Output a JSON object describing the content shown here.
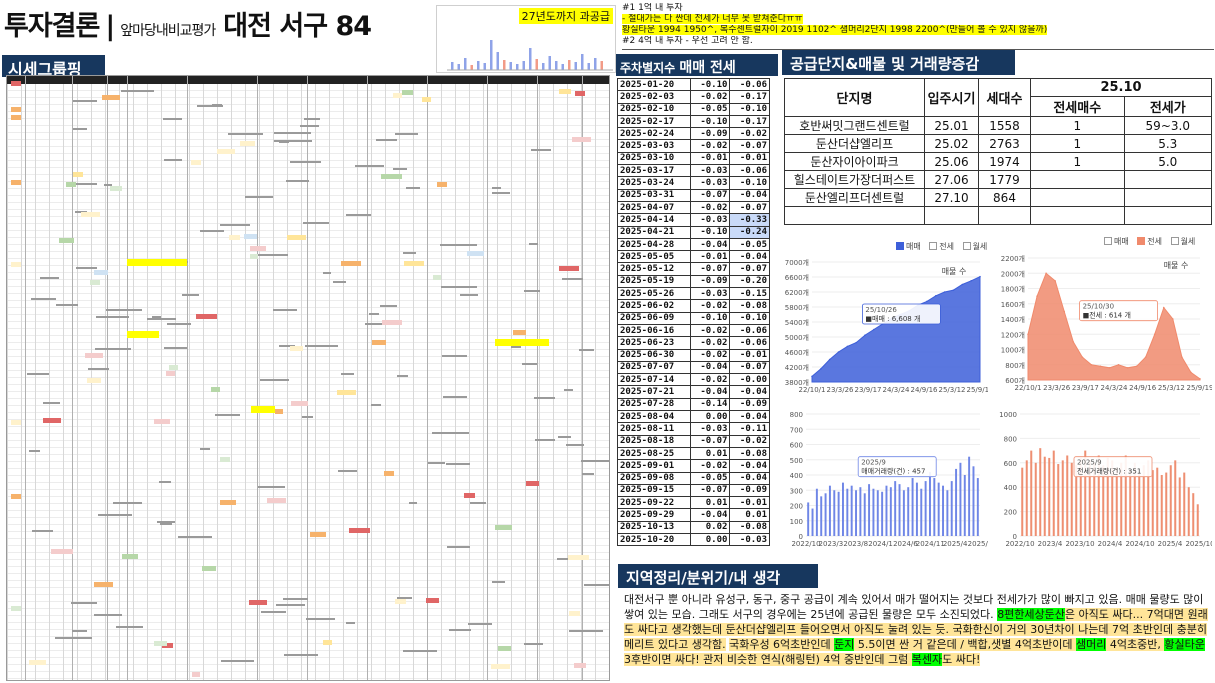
{
  "header": {
    "title_main": "투자결론",
    "title_sep": "|",
    "title_sub": "앞마당내비교평가",
    "title_region": "대전 서구 84",
    "mini_chart_label": "27년도까지 과공급"
  },
  "notes": {
    "line1": "#1 1억 내 투자",
    "line2": "- 절대가는 다 싼데 전세가 너무 못 받쳐준다ㅠㅠ",
    "line3": "황실타운 1994 1950^, 복수센트럴자이 2019 1102^ 샘머리2단지 1998 2200^(만들어 볼 수 있지 않을까)",
    "line4": "#2 4억 내 투자 - 우선 고려 안 함."
  },
  "banners": {
    "grouping": "시세그룹핑",
    "weekly_prefix": "주차별지수",
    "weekly_title": "매매 전세",
    "supply": "공급단지&매물 및 거래량증감",
    "opinion": "지역정리/분위기/내 생각"
  },
  "weekly": [
    {
      "date": "2025-01-20",
      "sale": "-0.10",
      "jeonse": "-0.06"
    },
    {
      "date": "2025-02-03",
      "sale": "-0.02",
      "jeonse": "-0.17"
    },
    {
      "date": "2025-02-10",
      "sale": "-0.05",
      "jeonse": "-0.10"
    },
    {
      "date": "2025-02-17",
      "sale": "-0.10",
      "jeonse": "-0.17"
    },
    {
      "date": "2025-02-24",
      "sale": "-0.09",
      "jeonse": "-0.02"
    },
    {
      "date": "2025-03-03",
      "sale": "-0.02",
      "jeonse": "-0.07"
    },
    {
      "date": "2025-03-10",
      "sale": "-0.01",
      "jeonse": "-0.01"
    },
    {
      "date": "2025-03-17",
      "sale": "-0.03",
      "jeonse": "-0.06"
    },
    {
      "date": "2025-03-24",
      "sale": "-0.03",
      "jeonse": "-0.10"
    },
    {
      "date": "2025-03-31",
      "sale": "-0.07",
      "jeonse": "-0.04"
    },
    {
      "date": "2025-04-07",
      "sale": "-0.02",
      "jeonse": "-0.07"
    },
    {
      "date": "2025-04-14",
      "sale": "-0.03",
      "jeonse": "-0.33"
    },
    {
      "date": "2025-04-21",
      "sale": "-0.10",
      "jeonse": "-0.24"
    },
    {
      "date": "2025-04-28",
      "sale": "-0.04",
      "jeonse": "-0.05"
    },
    {
      "date": "2025-05-05",
      "sale": "-0.01",
      "jeonse": "-0.04"
    },
    {
      "date": "2025-05-12",
      "sale": "-0.07",
      "jeonse": "-0.07"
    },
    {
      "date": "2025-05-19",
      "sale": "-0.09",
      "jeonse": "-0.20"
    },
    {
      "date": "2025-05-26",
      "sale": "-0.03",
      "jeonse": "-0.15"
    },
    {
      "date": "2025-06-02",
      "sale": "-0.02",
      "jeonse": "-0.08"
    },
    {
      "date": "2025-06-09",
      "sale": "-0.10",
      "jeonse": "-0.10"
    },
    {
      "date": "2025-06-16",
      "sale": "-0.02",
      "jeonse": "-0.06"
    },
    {
      "date": "2025-06-23",
      "sale": "-0.02",
      "jeonse": "-0.06"
    },
    {
      "date": "2025-06-30",
      "sale": "-0.02",
      "jeonse": "-0.01"
    },
    {
      "date": "2025-07-07",
      "sale": "-0.04",
      "jeonse": "-0.07"
    },
    {
      "date": "2025-07-14",
      "sale": "-0.02",
      "jeonse": "-0.00"
    },
    {
      "date": "2025-07-21",
      "sale": "-0.04",
      "jeonse": "-0.04"
    },
    {
      "date": "2025-07-28",
      "sale": "-0.14",
      "jeonse": "-0.09"
    },
    {
      "date": "2025-08-04",
      "sale": "0.00",
      "jeonse": "-0.04"
    },
    {
      "date": "2025-08-11",
      "sale": "-0.03",
      "jeonse": "-0.11"
    },
    {
      "date": "2025-08-18",
      "sale": "-0.07",
      "jeonse": "-0.02"
    },
    {
      "date": "2025-08-25",
      "sale": "0.01",
      "jeonse": "-0.08"
    },
    {
      "date": "2025-09-01",
      "sale": "-0.02",
      "jeonse": "-0.04"
    },
    {
      "date": "2025-09-08",
      "sale": "-0.05",
      "jeonse": "-0.04"
    },
    {
      "date": "2025-09-15",
      "sale": "-0.07",
      "jeonse": "-0.09"
    },
    {
      "date": "2025-09-22",
      "sale": "0.01",
      "jeonse": "-0.01"
    },
    {
      "date": "2025-09-29",
      "sale": "-0.04",
      "jeonse": "0.01"
    },
    {
      "date": "2025-10-13",
      "sale": "0.02",
      "jeonse": "-0.08"
    },
    {
      "date": "2025-10-20",
      "sale": "0.00",
      "jeonse": "-0.03"
    }
  ],
  "supply": {
    "col_name": "단지명",
    "col_move": "입주시기",
    "col_units": "세대수",
    "col_period": "25.10",
    "col_jeonse_count": "전세매수",
    "col_jeonse_price": "전세가",
    "rows": [
      {
        "name": "호반써밋그랜드센트럴",
        "move": "25.01",
        "units": "1558",
        "count": "1",
        "price": "59~3.0"
      },
      {
        "name": "둔산더샵엘리프",
        "move": "25.02",
        "units": "2763",
        "count": "1",
        "price": "5.3"
      },
      {
        "name": "둔산자이아이파크",
        "move": "25.06",
        "units": "1974",
        "count": "1",
        "price": "5.0"
      },
      {
        "name": "힐스테이트가장더퍼스트",
        "move": "27.06",
        "units": "1779",
        "count": "",
        "price": ""
      },
      {
        "name": "둔산엘리프더센트럴",
        "move": "27.10",
        "units": "864",
        "count": "",
        "price": ""
      }
    ]
  },
  "legend": {
    "sale": "매매",
    "jeonse": "전세",
    "monthly": "월세",
    "listings": "매물 수"
  },
  "chart_data": [
    {
      "type": "area",
      "title": "",
      "series_name": "매매",
      "x_ticks": [
        "22/10/1",
        "23/3/26",
        "23/9/17",
        "24/3/24",
        "24/9/16",
        "25/3/12",
        "25/9/19"
      ],
      "y_ticks": [
        "3800개",
        "4200개",
        "4600개",
        "5000개",
        "5400개",
        "5800개",
        "6200개",
        "6600개",
        "7000개"
      ],
      "ylim": [
        3800,
        7000
      ],
      "values": [
        3950,
        4150,
        4400,
        4600,
        4750,
        4850,
        5050,
        5200,
        5350,
        5500,
        5600,
        5700,
        5850,
        5950,
        6100,
        6200,
        6250,
        6400,
        6500,
        6608
      ],
      "tooltip_date": "25/10/26",
      "tooltip_text": "■매매 : 6,608 개",
      "color": "#3d5fd9"
    },
    {
      "type": "area",
      "title": "",
      "series_name": "전세",
      "x_ticks": [
        "22/10/1",
        "23/3/26",
        "23/9/17",
        "24/3/24",
        "24/9/16",
        "25/3/12",
        "25/9/19"
      ],
      "y_ticks": [
        "600개",
        "800개",
        "1000개",
        "1200개",
        "1400개",
        "1600개",
        "1800개",
        "2000개",
        "2200개"
      ],
      "ylim": [
        600,
        2200
      ],
      "values": [
        1200,
        1700,
        2000,
        1900,
        1500,
        1100,
        900,
        800,
        780,
        760,
        800,
        760,
        780,
        900,
        1200,
        1550,
        1400,
        900,
        700,
        614
      ],
      "tooltip_date": "25/10/30",
      "tooltip_text": "■전세 : 614 개",
      "color": "#f08a6c"
    },
    {
      "type": "bar",
      "title": "",
      "series_name": "매매거래량(건)",
      "x_ticks": [
        "2022/10",
        "2023/3",
        "2023/8",
        "2024/1",
        "2024/6",
        "2024/11",
        "2025/4",
        "2025/9"
      ],
      "y_ticks": [
        "0",
        "100",
        "200",
        "300",
        "400",
        "500",
        "600",
        "700",
        "800"
      ],
      "ylim": [
        0,
        800
      ],
      "values": [
        220,
        180,
        310,
        260,
        280,
        330,
        300,
        290,
        350,
        310,
        330,
        300,
        320,
        280,
        340,
        310,
        300,
        290,
        330,
        320,
        360,
        340,
        300,
        320,
        380,
        350,
        310,
        360,
        420,
        380,
        350,
        330,
        300,
        360,
        440,
        480,
        400,
        520,
        457,
        380
      ],
      "tooltip_date": "2025/9",
      "tooltip_text": "매매거래량(건) : 457",
      "color": "#6f86e6"
    },
    {
      "type": "bar",
      "title": "",
      "series_name": "전세거래량(건)",
      "x_ticks": [
        "2022/10",
        "2023/4",
        "2023/10",
        "2024/4",
        "2024/10",
        "2025/4",
        "2025/10"
      ],
      "y_ticks": [
        "0",
        "200",
        "400",
        "600",
        "800",
        "1000"
      ],
      "ylim": [
        0,
        1000
      ],
      "values": [
        560,
        620,
        700,
        600,
        720,
        650,
        640,
        700,
        590,
        620,
        660,
        600,
        580,
        640,
        700,
        620,
        600,
        660,
        580,
        640,
        620,
        560,
        600,
        660,
        540,
        600,
        520,
        580,
        620,
        540,
        560,
        500,
        520,
        580,
        620,
        480,
        520,
        400,
        351,
        260
      ],
      "tooltip_date": "2025/9",
      "tooltip_text": "전세거래량(건) : 351",
      "color": "#ee8f72"
    }
  ],
  "comment": {
    "p1": "대전서구 뿐 아니라 유성구, 동구, 중구 공급이 계속 있어서 매가 떨어지는 것보다 전세가가 많이 빠지고 있음. 매매 물량도 많이 쌓여 있는 모습. 그래도 서구의 경우에는 25년에 공급된 물량은 모두 소진되었다.",
    "hl1": "8편한세상둔산",
    "p2": "은 아직도 싸다... 7억대면 원래도 싸다고 생각했는데 둔산더샵엘리프 들어오면서 아직도 눌려 있는 듯. 국화한신이 거의 30년차이 나는데 7억 초반인데 충분히 메리트 있다고 생각함.",
    "p3a": "국화우성 6억초반인데 ",
    "hl2": "둔지",
    "p3b": " 5.5이면 싼 거 같은데 / 백합,샛별 4억초반이데 ",
    "hl3": "샘머리",
    "p3c": " 4억초중반, ",
    "hl4": "황실타운",
    "p3d": " 3후반이면 싸다! 관저 비슷한 연식(해링턴) 4억 중반인데 그럼 ",
    "hl5": "복센자",
    "p3e": "도 싸다!"
  }
}
